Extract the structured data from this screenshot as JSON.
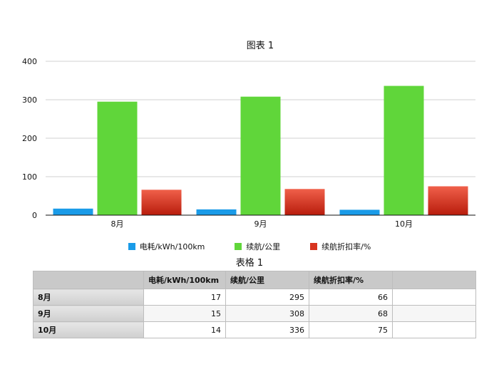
{
  "chart_data": {
    "type": "bar",
    "title": "图表 1",
    "categories": [
      "8月",
      "9月",
      "10月"
    ],
    "series": [
      {
        "name": "电耗/kWh/100km",
        "values": [
          17,
          15,
          14
        ],
        "color": "#1a9be8"
      },
      {
        "name": "续航/公里",
        "values": [
          295,
          308,
          336
        ],
        "color": "#60d63a"
      },
      {
        "name": "续航折扣率/%",
        "values": [
          66,
          68,
          75
        ],
        "color": "#d8341f"
      }
    ],
    "ylim": [
      0,
      400
    ],
    "yticks": [
      "0",
      "100",
      "200",
      "300",
      "400"
    ],
    "grid": true,
    "legend": "bottom"
  },
  "table": {
    "title": "表格 1",
    "headers": [
      "",
      "电耗/kWh/100km",
      "续航/公里",
      "续航折扣率/%",
      ""
    ],
    "rows": [
      {
        "label": "8月",
        "cells": [
          "17",
          "295",
          "66",
          ""
        ]
      },
      {
        "label": "9月",
        "cells": [
          "15",
          "308",
          "68",
          ""
        ]
      },
      {
        "label": "10月",
        "cells": [
          "14",
          "336",
          "75",
          ""
        ]
      }
    ]
  }
}
